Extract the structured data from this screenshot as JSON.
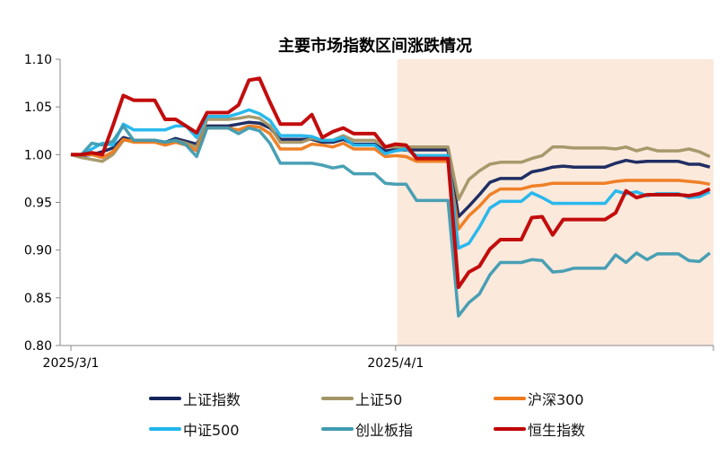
{
  "chart_data": {
    "type": "line",
    "title": "主要市场指数区间涨跌情况",
    "xlabel": "",
    "ylabel": "",
    "ylim": [
      0.8,
      1.1
    ],
    "yticks": [
      "1.10",
      "1.05",
      "1.00",
      "0.95",
      "0.90",
      "0.85",
      "0.80"
    ],
    "xticks": [
      "2025/3/1",
      "2025/4/1"
    ],
    "grid": false,
    "legend_position": "bottom",
    "highlight_range": [
      "2025/4/1",
      "2025/5/1"
    ],
    "highlight_color": "#fbe9dc",
    "x": [
      "2025/3/1",
      "2025/3/2",
      "2025/3/3",
      "2025/3/4",
      "2025/3/5",
      "2025/3/6",
      "2025/3/7",
      "2025/3/8",
      "2025/3/9",
      "2025/3/10",
      "2025/3/11",
      "2025/3/12",
      "2025/3/13",
      "2025/3/14",
      "2025/3/15",
      "2025/3/16",
      "2025/3/17",
      "2025/3/18",
      "2025/3/19",
      "2025/3/20",
      "2025/3/21",
      "2025/3/22",
      "2025/3/23",
      "2025/3/24",
      "2025/3/25",
      "2025/3/26",
      "2025/3/27",
      "2025/3/28",
      "2025/3/29",
      "2025/3/30",
      "2025/3/31",
      "2025/4/1",
      "2025/4/2",
      "2025/4/3",
      "2025/4/4",
      "2025/4/5",
      "2025/4/6",
      "2025/4/7",
      "2025/4/8",
      "2025/4/9",
      "2025/4/10",
      "2025/4/11",
      "2025/4/12",
      "2025/4/13",
      "2025/4/14",
      "2025/4/15",
      "2025/4/16",
      "2025/4/17",
      "2025/4/18",
      "2025/4/19",
      "2025/4/20",
      "2025/4/21",
      "2025/4/22",
      "2025/4/23",
      "2025/4/24",
      "2025/4/25",
      "2025/4/26",
      "2025/4/27",
      "2025/4/28",
      "2025/4/29",
      "2025/4/30",
      "2025/5/1"
    ],
    "series": [
      {
        "name": "上证指数",
        "color": "#14245c",
        "values": [
          1.0,
          0.999,
          1.0,
          1.003,
          1.007,
          1.018,
          1.015,
          1.015,
          1.015,
          1.013,
          1.017,
          1.014,
          1.011,
          1.03,
          1.03,
          1.03,
          1.032,
          1.034,
          1.033,
          1.028,
          1.016,
          1.016,
          1.016,
          1.016,
          1.013,
          1.013,
          1.016,
          1.011,
          1.011,
          1.011,
          1.004,
          1.005,
          1.005,
          1.005,
          1.005,
          1.005,
          1.005,
          0.935,
          0.946,
          0.958,
          0.971,
          0.975,
          0.975,
          0.975,
          0.982,
          0.984,
          0.987,
          0.988,
          0.987,
          0.987,
          0.987,
          0.987,
          0.991,
          0.994,
          0.992,
          0.993,
          0.993,
          0.993,
          0.993,
          0.99,
          0.99,
          0.987
        ]
      },
      {
        "name": "上证50",
        "color": "#a39565",
        "values": [
          1.0,
          0.997,
          0.995,
          0.993,
          1.0,
          1.015,
          1.015,
          1.015,
          1.015,
          1.012,
          1.015,
          1.012,
          1.008,
          1.037,
          1.037,
          1.037,
          1.038,
          1.04,
          1.038,
          1.03,
          1.013,
          1.013,
          1.013,
          1.017,
          1.015,
          1.015,
          1.02,
          1.015,
          1.015,
          1.015,
          1.008,
          1.008,
          1.008,
          1.008,
          1.008,
          1.008,
          1.008,
          0.953,
          0.974,
          0.983,
          0.99,
          0.992,
          0.992,
          0.992,
          0.996,
          0.999,
          1.008,
          1.008,
          1.007,
          1.007,
          1.007,
          1.007,
          1.006,
          1.008,
          1.004,
          1.007,
          1.004,
          1.004,
          1.004,
          1.006,
          1.003,
          0.998
        ]
      },
      {
        "name": "沪深300",
        "color": "#ee7a1c",
        "values": [
          1.0,
          1.0,
          1.0,
          0.997,
          1.003,
          1.016,
          1.013,
          1.013,
          1.013,
          1.01,
          1.013,
          1.01,
          1.004,
          1.028,
          1.028,
          1.028,
          1.026,
          1.03,
          1.029,
          1.022,
          1.006,
          1.006,
          1.006,
          1.011,
          1.01,
          1.008,
          1.012,
          1.006,
          1.006,
          1.006,
          0.998,
          0.999,
          0.998,
          0.993,
          0.993,
          0.993,
          0.993,
          0.922,
          0.936,
          0.946,
          0.958,
          0.964,
          0.964,
          0.964,
          0.967,
          0.968,
          0.97,
          0.97,
          0.97,
          0.97,
          0.97,
          0.97,
          0.972,
          0.973,
          0.973,
          0.973,
          0.973,
          0.973,
          0.973,
          0.972,
          0.971,
          0.969
        ]
      },
      {
        "name": "中证500",
        "color": "#1fb5ec",
        "values": [
          1.0,
          1.0,
          1.006,
          1.012,
          1.01,
          1.032,
          1.026,
          1.026,
          1.026,
          1.026,
          1.03,
          1.03,
          1.018,
          1.04,
          1.04,
          1.04,
          1.043,
          1.047,
          1.043,
          1.036,
          1.02,
          1.02,
          1.02,
          1.019,
          1.015,
          1.015,
          1.018,
          1.01,
          1.01,
          1.01,
          1.001,
          1.004,
          1.006,
          0.999,
          0.999,
          0.999,
          0.999,
          0.902,
          0.907,
          0.924,
          0.944,
          0.951,
          0.951,
          0.951,
          0.96,
          0.955,
          0.949,
          0.949,
          0.949,
          0.949,
          0.949,
          0.949,
          0.962,
          0.959,
          0.961,
          0.957,
          0.959,
          0.959,
          0.959,
          0.955,
          0.956,
          0.961
        ]
      },
      {
        "name": "创业板指",
        "color": "#3f9bb1",
        "values": [
          1.0,
          1.0,
          1.012,
          1.01,
          1.014,
          1.03,
          1.015,
          1.015,
          1.015,
          1.013,
          1.015,
          1.01,
          0.998,
          1.028,
          1.028,
          1.028,
          1.022,
          1.028,
          1.025,
          1.012,
          0.991,
          0.991,
          0.991,
          0.991,
          0.989,
          0.986,
          0.988,
          0.98,
          0.98,
          0.98,
          0.97,
          0.969,
          0.969,
          0.952,
          0.952,
          0.952,
          0.952,
          0.831,
          0.845,
          0.854,
          0.874,
          0.887,
          0.887,
          0.887,
          0.89,
          0.889,
          0.877,
          0.878,
          0.881,
          0.881,
          0.881,
          0.881,
          0.895,
          0.887,
          0.897,
          0.89,
          0.896,
          0.896,
          0.896,
          0.889,
          0.888,
          0.897
        ]
      },
      {
        "name": "恒生指数",
        "color": "#c00000",
        "values": [
          1.0,
          1.0,
          1.002,
          1.0,
          1.03,
          1.062,
          1.057,
          1.057,
          1.057,
          1.037,
          1.037,
          1.03,
          1.023,
          1.044,
          1.044,
          1.044,
          1.052,
          1.078,
          1.08,
          1.055,
          1.032,
          1.032,
          1.032,
          1.042,
          1.018,
          1.024,
          1.028,
          1.022,
          1.022,
          1.022,
          1.008,
          1.011,
          1.01,
          0.996,
          0.996,
          0.996,
          0.996,
          0.861,
          0.877,
          0.883,
          0.901,
          0.911,
          0.911,
          0.911,
          0.934,
          0.935,
          0.916,
          0.932,
          0.932,
          0.932,
          0.932,
          0.932,
          0.939,
          0.962,
          0.955,
          0.958,
          0.958,
          0.958,
          0.958,
          0.957,
          0.959,
          0.964
        ]
      }
    ]
  }
}
